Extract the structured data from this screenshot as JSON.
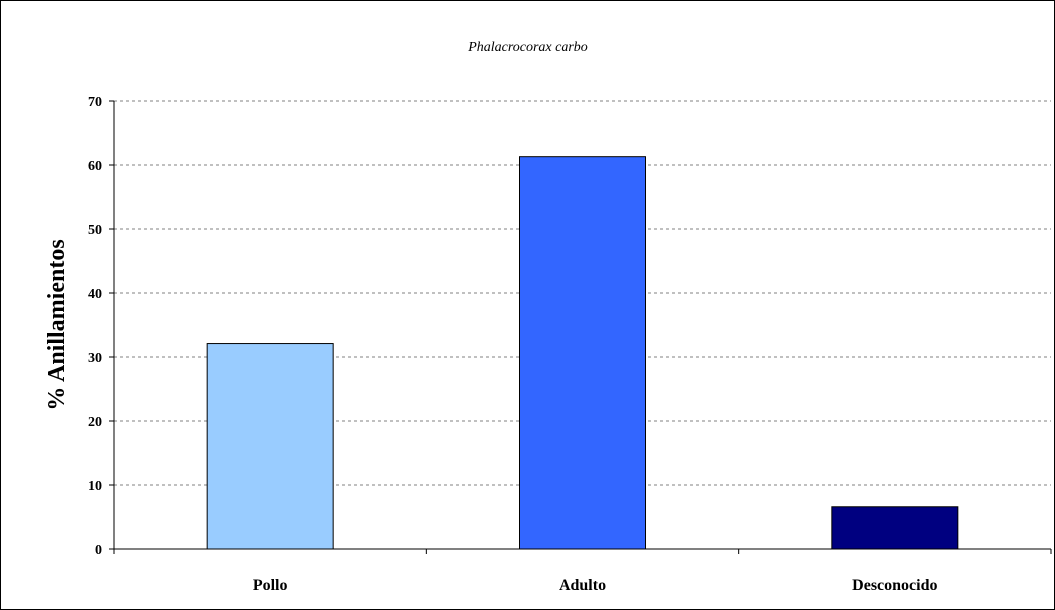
{
  "chart_data": {
    "type": "bar",
    "title": "Phalacrocorax carbo",
    "ylabel": "% Anillamientos",
    "xlabel": "",
    "categories": [
      "Pollo",
      "Adulto",
      "Desconocido"
    ],
    "values": [
      32.1,
      61.3,
      6.6
    ],
    "colors": [
      "#99ccff",
      "#3366ff",
      "#000080"
    ],
    "ylim": [
      0,
      70
    ],
    "yticks": [
      0,
      10,
      20,
      30,
      40,
      50,
      60,
      70
    ],
    "grid": true,
    "legend": "none"
  }
}
